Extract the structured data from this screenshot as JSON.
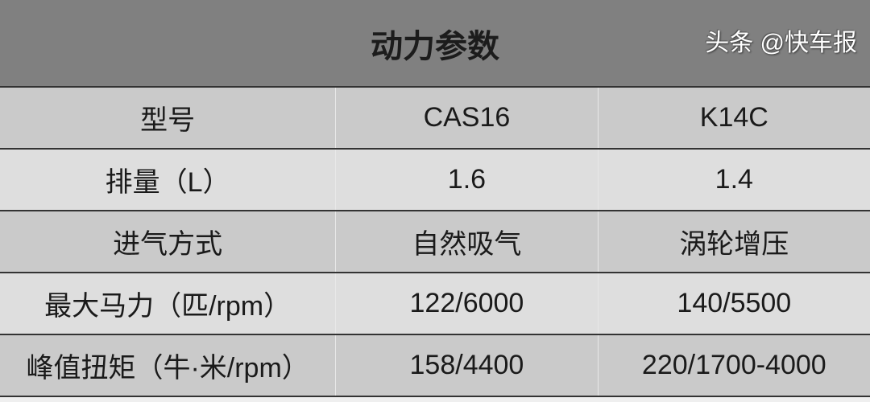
{
  "title": "动力参数",
  "rows": [
    [
      "型号",
      "CAS16",
      "K14C"
    ],
    [
      "排量（L）",
      "1.6",
      "1.4"
    ],
    [
      "进气方式",
      "自然吸气",
      "涡轮增压"
    ],
    [
      "最大马力（匹/rpm）",
      "122/6000",
      "140/5500"
    ],
    [
      "峰值扭矩（牛·米/rpm）",
      "158/4400",
      "220/1700-4000"
    ]
  ],
  "watermark": "头条 @快车报",
  "colors": {
    "header_bg": "#808080",
    "row_dark": "#cacaca",
    "row_light": "#dedede"
  }
}
